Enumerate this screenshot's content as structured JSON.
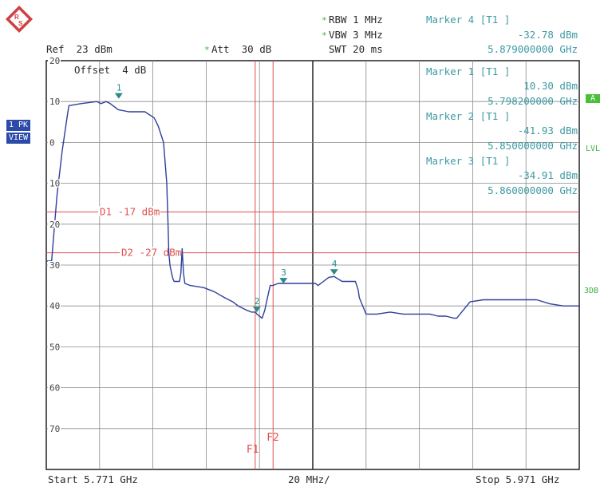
{
  "header": {
    "ref": "Ref  23 dBm",
    "att": "Att  30 dB",
    "rbw": "RBW 1 MHz",
    "vbw": "VBW 3 MHz",
    "swt": "SWT 20 ms",
    "offset": "Offset  4 dB"
  },
  "markers_readout": [
    {
      "title": "Marker 4 [T1 ]",
      "level": "-32.78 dBm",
      "freq": "5.879000000 GHz"
    },
    {
      "title": "Marker 1 [T1 ]",
      "level": "10.30 dBm",
      "freq": "5.798200000 GHz"
    },
    {
      "title": "Marker 2 [T1 ]",
      "level": "-41.93 dBm",
      "freq": "5.850000000 GHz"
    },
    {
      "title": "Marker 3 [T1 ]",
      "level": "-34.91 dBm",
      "freq": "5.860000000 GHz"
    }
  ],
  "side_left": {
    "badge1": "1 PK",
    "badge2": "VIEW"
  },
  "side_right": {
    "a": "A",
    "lvl": "LVL",
    "db3": "3DB"
  },
  "footer": {
    "start": "Start 5.771 GHz",
    "span": "20 MHz/",
    "stop": "Stop 5.971 GHz"
  },
  "colors": {
    "trace": "#2e3f9a",
    "grid": "#8a8a8a",
    "limit": "#e05050",
    "marker": "#2a8a8a",
    "readout": "#3d9aa3",
    "badge": "#2c4ba8",
    "status": "#3bb33b"
  },
  "chart_data": {
    "type": "line",
    "x_unit": "GHz",
    "xlim": [
      5.771,
      5.971
    ],
    "ylim": [
      -80,
      20
    ],
    "y_ticks": [
      20,
      10,
      0,
      -10,
      -20,
      -30,
      -40,
      -50,
      -60,
      -70
    ],
    "y_tick_labels": [
      "20",
      "10",
      "0",
      "10",
      "20",
      "30",
      "40",
      "50",
      "60",
      "70"
    ],
    "grid": true,
    "series": [
      {
        "x": [
          5.771,
          5.773,
          5.775,
          5.777,
          5.779,
          5.7795,
          5.784,
          5.79,
          5.7915,
          5.7935,
          5.795,
          5.798,
          5.802,
          5.808,
          5.8115,
          5.813,
          5.815,
          5.8162,
          5.8166,
          5.817,
          5.8174,
          5.818,
          5.8186,
          5.819,
          5.821,
          5.8215,
          5.822,
          5.8225,
          5.823,
          5.825,
          5.83,
          5.834,
          5.838,
          5.841,
          5.843,
          5.846,
          5.848,
          5.8495,
          5.85,
          5.852,
          5.853,
          5.854,
          5.855,
          5.856,
          5.858,
          5.86,
          5.864,
          5.868,
          5.872,
          5.873,
          5.875,
          5.877,
          5.879,
          5.882,
          5.885,
          5.887,
          5.888,
          5.8885,
          5.891,
          5.895,
          5.9,
          5.905,
          5.91,
          5.915,
          5.918,
          5.921,
          5.924,
          5.925,
          5.93,
          5.935,
          5.94,
          5.945,
          5.95,
          5.955,
          5.96,
          5.965,
          5.971
        ],
        "y": [
          -29,
          -29,
          -13,
          -2,
          7,
          9,
          9.5,
          10,
          9.5,
          10,
          9.5,
          8,
          7.5,
          7.5,
          6,
          4,
          0,
          -10,
          -18,
          -27,
          -30,
          -32,
          -33.5,
          -34,
          -34,
          -32,
          -26,
          -32,
          -34.5,
          -35,
          -35.5,
          -36.5,
          -38,
          -39,
          -40,
          -41,
          -41.5,
          -41.5,
          -42,
          -43,
          -41,
          -38,
          -35,
          -35,
          -34.5,
          -34.5,
          -34.5,
          -34.5,
          -34.5,
          -35,
          -34,
          -33,
          -32.8,
          -34,
          -34,
          -34,
          -36,
          -38,
          -42,
          -42,
          -41.5,
          -42,
          -42,
          -42,
          -42.5,
          -42.5,
          -43,
          -43,
          -39,
          -38.5,
          -38.5,
          -38.5,
          -38.5,
          -38.5,
          -39.5,
          -40,
          -40
        ]
      }
    ],
    "limit_lines": [
      {
        "label": "D1 -17 dBm",
        "value": -17
      },
      {
        "label": "D2 -27 dBm",
        "value": -27
      }
    ],
    "freq_lines": [
      {
        "label": "F1",
        "x": 5.8494
      },
      {
        "label": "F2",
        "x": 5.8561
      }
    ],
    "markers": [
      {
        "label": "1",
        "x": 5.7982,
        "y": 10.3
      },
      {
        "label": "2",
        "x": 5.85,
        "y": -41.93
      },
      {
        "label": "3",
        "x": 5.86,
        "y": -34.91
      },
      {
        "label": "4",
        "x": 5.879,
        "y": -32.78
      }
    ]
  }
}
